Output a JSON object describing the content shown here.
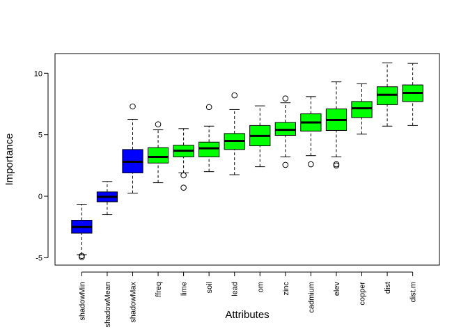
{
  "chart_data": {
    "type": "boxplot",
    "title": "",
    "xlabel": "Attributes",
    "ylabel": "Importance",
    "ylim": [
      -5.6,
      11.6
    ],
    "yticks": [
      -5,
      0,
      5,
      10
    ],
    "grid": false,
    "legend": "none",
    "colors": {
      "shadow": "#0000ff",
      "confirmed": "#00ff00",
      "median": "#000000",
      "outline": "#000000"
    },
    "categories": [
      "shadowMin",
      "shadowMean",
      "shadowMax",
      "ffreq",
      "lime",
      "soil",
      "lead",
      "om",
      "zinc",
      "cadmium",
      "elev",
      "copper",
      "dist",
      "dist.m"
    ],
    "boxes": [
      {
        "name": "shadowMin",
        "group": "shadow",
        "whisker_low": -4.75,
        "q1": -3.0,
        "median": -2.5,
        "q3": -1.95,
        "whisker_high": -0.65,
        "outliers": [
          -4.85,
          -4.95
        ]
      },
      {
        "name": "shadowMean",
        "group": "shadow",
        "whisker_low": -1.5,
        "q1": -0.45,
        "median": -0.05,
        "q3": 0.35,
        "whisker_high": 1.2,
        "outliers": []
      },
      {
        "name": "shadowMax",
        "group": "shadow",
        "whisker_low": 0.25,
        "q1": 1.9,
        "median": 2.8,
        "q3": 3.8,
        "whisker_high": 6.25,
        "outliers": [
          7.3
        ]
      },
      {
        "name": "ffreq",
        "group": "confirmed",
        "whisker_low": 1.1,
        "q1": 2.7,
        "median": 3.2,
        "q3": 3.95,
        "whisker_high": 5.4,
        "outliers": [
          5.85
        ]
      },
      {
        "name": "lime",
        "group": "confirmed",
        "whisker_low": 1.9,
        "q1": 3.2,
        "median": 3.7,
        "q3": 4.15,
        "whisker_high": 5.5,
        "outliers": [
          1.7,
          0.7
        ]
      },
      {
        "name": "soil",
        "group": "confirmed",
        "whisker_low": 2.0,
        "q1": 3.2,
        "median": 3.9,
        "q3": 4.4,
        "whisker_high": 5.7,
        "outliers": [
          7.25
        ]
      },
      {
        "name": "lead",
        "group": "confirmed",
        "whisker_low": 1.75,
        "q1": 3.8,
        "median": 4.5,
        "q3": 5.1,
        "whisker_high": 7.05,
        "outliers": [
          8.2
        ]
      },
      {
        "name": "om",
        "group": "confirmed",
        "whisker_low": 2.4,
        "q1": 4.1,
        "median": 4.9,
        "q3": 5.75,
        "whisker_high": 7.35,
        "outliers": []
      },
      {
        "name": "zinc",
        "group": "confirmed",
        "whisker_low": 3.2,
        "q1": 4.95,
        "median": 5.4,
        "q3": 6.0,
        "whisker_high": 7.6,
        "outliers": [
          7.95,
          2.55
        ]
      },
      {
        "name": "cadmium",
        "group": "confirmed",
        "whisker_low": 3.3,
        "q1": 5.3,
        "median": 6.0,
        "q3": 6.7,
        "whisker_high": 8.1,
        "outliers": [
          2.6
        ]
      },
      {
        "name": "elev",
        "group": "confirmed",
        "whisker_low": 3.2,
        "q1": 5.35,
        "median": 6.2,
        "q3": 7.1,
        "whisker_high": 9.3,
        "outliers": [
          2.6,
          2.5
        ]
      },
      {
        "name": "copper",
        "group": "confirmed",
        "whisker_low": 5.05,
        "q1": 6.4,
        "median": 7.15,
        "q3": 7.7,
        "whisker_high": 9.15,
        "outliers": []
      },
      {
        "name": "dist",
        "group": "confirmed",
        "whisker_low": 5.7,
        "q1": 7.45,
        "median": 8.25,
        "q3": 8.9,
        "whisker_high": 10.85,
        "outliers": []
      },
      {
        "name": "dist.m",
        "group": "confirmed",
        "whisker_low": 5.75,
        "q1": 7.7,
        "median": 8.4,
        "q3": 9.05,
        "whisker_high": 10.8,
        "outliers": []
      }
    ]
  }
}
